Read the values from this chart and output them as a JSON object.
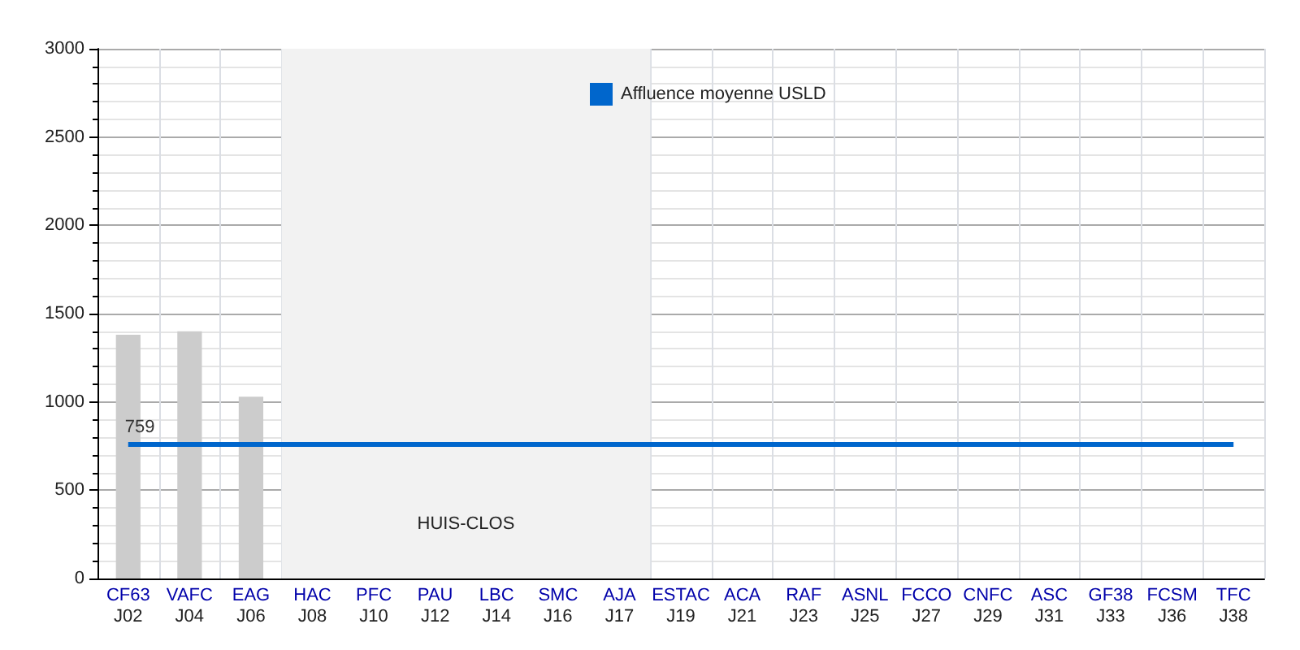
{
  "chart_data": {
    "type": "bar",
    "categories": [
      "CF63\nJ02",
      "VAFC\nJ04",
      "EAG\nJ06",
      "HAC\nJ08",
      "PFC\nJ10",
      "PAU\nJ12",
      "LBC\nJ14",
      "SMC\nJ16",
      "AJA\nJ17",
      "ESTAC\nJ19",
      "ACA\nJ21",
      "RAF\nJ23",
      "ASNL\nJ25",
      "FCCO\nJ27",
      "CNFC\nJ29",
      "ASC\nJ31",
      "GF38\nJ33",
      "FCSM\nJ36",
      "TFC\nJ38"
    ],
    "series": [
      {
        "type": "bar",
        "color": "#cccccc",
        "values": [
          1380,
          1400,
          1030,
          null,
          null,
          null,
          null,
          null,
          null,
          null,
          null,
          null,
          null,
          null,
          null,
          null,
          null,
          null,
          null
        ]
      },
      {
        "type": "line",
        "name": "Affluence moyenne USLD",
        "color": "#0066cc",
        "values": [
          759,
          759,
          759,
          759,
          759,
          759,
          759,
          759,
          759,
          759,
          759,
          759,
          759,
          759,
          759,
          759,
          759,
          759,
          759
        ],
        "value_labels": [
          "759",
          null,
          null,
          null,
          null,
          null,
          null,
          null,
          null,
          null,
          null,
          null,
          null,
          null,
          null,
          null,
          null,
          null,
          null
        ]
      }
    ],
    "bands": [
      {
        "axis": "x",
        "from": "HAC\nJ08",
        "to": "AJA\nJ17",
        "label": "HUIS-CLOS",
        "color": "#f2f2f2"
      }
    ],
    "ylim": [
      0,
      3000
    ],
    "yticks": [
      0,
      500,
      1000,
      1500,
      2000,
      2500,
      3000
    ],
    "grid": true,
    "legend": "top"
  }
}
